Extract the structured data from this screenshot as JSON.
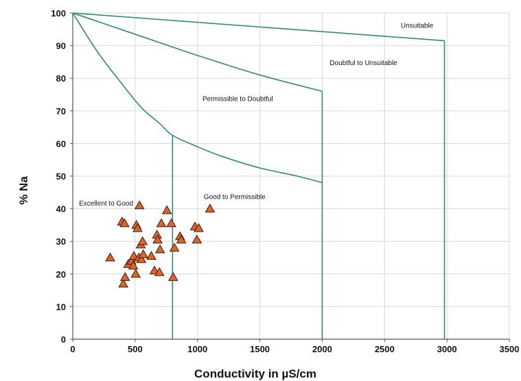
{
  "chart_data": {
    "type": "scatter",
    "title": "",
    "xlabel": "Conductivity in µS/cm",
    "ylabel": "% Na",
    "xlim": [
      0,
      3500
    ],
    "ylim": [
      0,
      100
    ],
    "x_ticks": [
      "0",
      "500",
      "1000",
      "1500",
      "2000",
      "2500",
      "3000",
      "3500"
    ],
    "y_ticks": [
      "0",
      "10",
      "20",
      "30",
      "40",
      "50",
      "60",
      "70",
      "80",
      "90",
      "100"
    ],
    "grid": true,
    "marker": "triangle",
    "marker_color": "#e0642a",
    "boundary_color": "#2e8b6f",
    "regions": [
      {
        "label": "Excellent to Good",
        "x": 50,
        "y": 41
      },
      {
        "label": "Good to Permissible",
        "x": 1050,
        "y": 43
      },
      {
        "label": "Permissible to Doubtful",
        "x": 1040,
        "y": 73
      },
      {
        "label": "Doubtful to Unsuitable",
        "x": 2060,
        "y": 84
      },
      {
        "label": "Unsuitable",
        "x": 2630,
        "y": 95.5
      }
    ],
    "boundaries": [
      {
        "name": "excellent-good-curve",
        "points": [
          [
            0,
            100
          ],
          [
            200,
            88
          ],
          [
            400,
            78
          ],
          [
            550,
            71
          ],
          [
            700,
            66
          ],
          [
            800,
            62.5
          ],
          [
            1000,
            59
          ],
          [
            1200,
            56
          ],
          [
            1500,
            52.5
          ],
          [
            1800,
            50
          ],
          [
            2000,
            48
          ]
        ]
      },
      {
        "name": "permissible-doubtful-curve",
        "points": [
          [
            0,
            100
          ],
          [
            500,
            93.5
          ],
          [
            1000,
            87
          ],
          [
            1500,
            81
          ],
          [
            2000,
            76
          ]
        ]
      },
      {
        "name": "doubtful-unsuitable-line",
        "points": [
          [
            0,
            100
          ],
          [
            2980,
            91.5
          ]
        ]
      },
      {
        "name": "vertical-800",
        "points": [
          [
            800,
            62.5
          ],
          [
            800,
            0
          ]
        ]
      },
      {
        "name": "vertical-2000",
        "points": [
          [
            2000,
            76
          ],
          [
            2000,
            0
          ]
        ]
      },
      {
        "name": "vertical-3000",
        "points": [
          [
            2980,
            91.5
          ],
          [
            2980,
            0
          ]
        ]
      }
    ],
    "points": [
      {
        "x": 300,
        "y": 25
      },
      {
        "x": 395,
        "y": 36
      },
      {
        "x": 405,
        "y": 17
      },
      {
        "x": 415,
        "y": 35.5
      },
      {
        "x": 420,
        "y": 19
      },
      {
        "x": 445,
        "y": 23
      },
      {
        "x": 470,
        "y": 24
      },
      {
        "x": 485,
        "y": 22.5
      },
      {
        "x": 490,
        "y": 25.5
      },
      {
        "x": 505,
        "y": 20
      },
      {
        "x": 510,
        "y": 35
      },
      {
        "x": 520,
        "y": 34
      },
      {
        "x": 530,
        "y": 25
      },
      {
        "x": 535,
        "y": 41
      },
      {
        "x": 545,
        "y": 29
      },
      {
        "x": 550,
        "y": 24.5
      },
      {
        "x": 560,
        "y": 30
      },
      {
        "x": 565,
        "y": 26
      },
      {
        "x": 630,
        "y": 25.5
      },
      {
        "x": 655,
        "y": 21
      },
      {
        "x": 675,
        "y": 32
      },
      {
        "x": 680,
        "y": 30.5
      },
      {
        "x": 695,
        "y": 20.5
      },
      {
        "x": 700,
        "y": 27.5
      },
      {
        "x": 710,
        "y": 35.5
      },
      {
        "x": 755,
        "y": 39.5
      },
      {
        "x": 790,
        "y": 35.5
      },
      {
        "x": 805,
        "y": 19
      },
      {
        "x": 815,
        "y": 28
      },
      {
        "x": 860,
        "y": 31.5
      },
      {
        "x": 870,
        "y": 30.5
      },
      {
        "x": 980,
        "y": 34.5
      },
      {
        "x": 995,
        "y": 30.5
      },
      {
        "x": 1010,
        "y": 34
      },
      {
        "x": 1100,
        "y": 40
      }
    ]
  }
}
